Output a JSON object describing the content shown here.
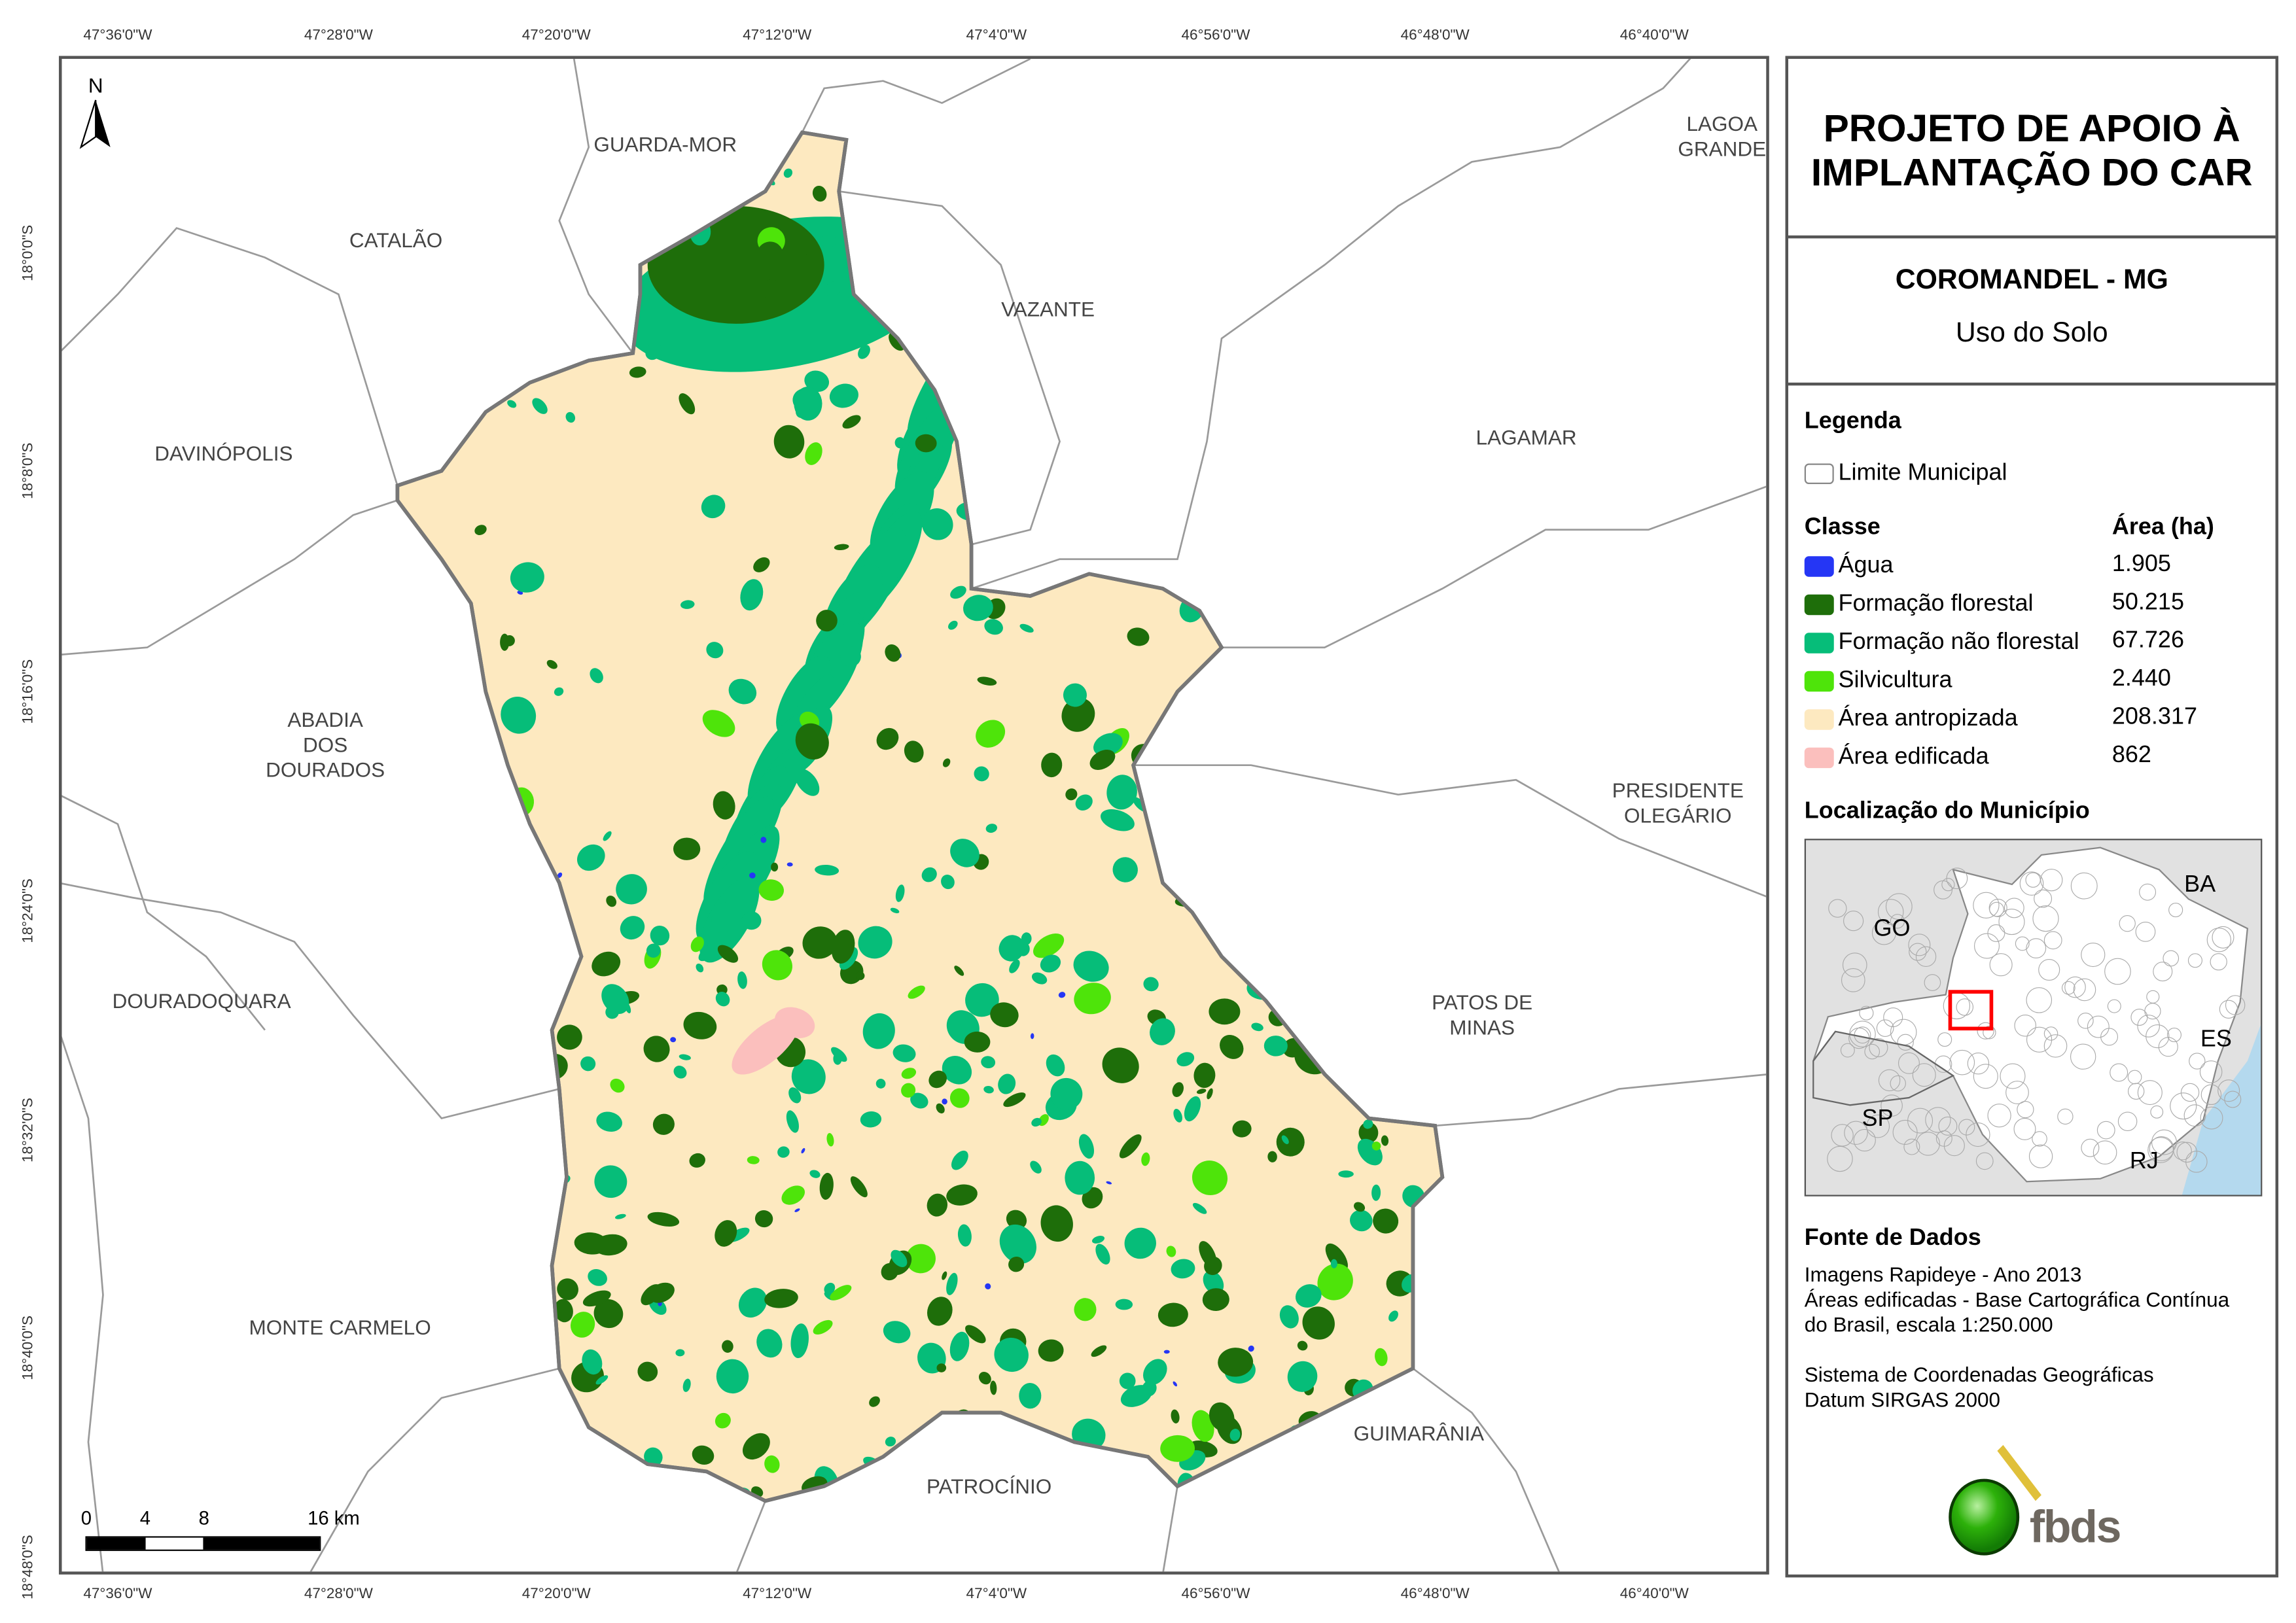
{
  "title": {
    "line1": "PROJETO DE APOIO À",
    "line2": "IMPLANTAÇÃO DO CAR"
  },
  "municipality": "COROMANDEL - MG",
  "subtitle": "Uso do Solo",
  "legend": {
    "heading": "Legenda",
    "boundary_label": "Limite Municipal",
    "class_header": "Classe",
    "area_header": "Área (ha)",
    "classes": [
      {
        "label": "Água",
        "area": "1.905",
        "color": "#2536f5"
      },
      {
        "label": "Formação florestal",
        "area": "50.215",
        "color": "#1e6e0a"
      },
      {
        "label": "Formação não florestal",
        "area": "67.726",
        "color": "#06bd79"
      },
      {
        "label": "Silvicultura",
        "area": "2.440",
        "color": "#4ee40a"
      },
      {
        "label": "Área antropizada",
        "area": "208.317",
        "color": "#fde9c0"
      },
      {
        "label": "Área edificada",
        "area": "862",
        "color": "#fbbfbd"
      }
    ]
  },
  "location": {
    "heading": "Localização do Município",
    "labels": {
      "go": "GO",
      "ba": "BA",
      "es": "ES",
      "sp": "SP",
      "rj": "RJ"
    },
    "highlight_color": "#ff0000"
  },
  "sources": {
    "heading": "Fonte de Dados",
    "line1": "Imagens Rapideye - Ano 2013",
    "line2": "Áreas edificadas - Base Cartográfica Contínua",
    "line3": "do Brasil, escala 1:250.000",
    "line4": "Sistema de Coordenadas Geográficas",
    "line5": "Datum SIRGAS 2000"
  },
  "logo_text": "fbds",
  "north_label": "N",
  "scale": {
    "l0": "0",
    "l1": "4",
    "l2": "8",
    "l3": "16 km"
  },
  "longitudes": [
    "47°36'0\"W",
    "47°28'0\"W",
    "47°20'0\"W",
    "47°12'0\"W",
    "47°4'0\"W",
    "46°56'0\"W",
    "46°48'0\"W",
    "46°40'0\"W"
  ],
  "latitudes": [
    "18°0'0\"S",
    "18°8'0\"S",
    "18°16'0\"S",
    "18°24'0\"S",
    "18°32'0\"S",
    "18°40'0\"S",
    "18°48'0\"S"
  ],
  "places": {
    "guarda_mor": "GUARDA-MOR",
    "lagoa_grande": [
      "LAGOA",
      "GRANDE"
    ],
    "catalao": "CATALÃO",
    "vazante": "VAZANTE",
    "davinopolis": "DAVINÓPOLIS",
    "lagamar": "LAGAMAR",
    "abadia": [
      "ABADIA",
      "DOS",
      "DOURADOS"
    ],
    "presidente": [
      "PRESIDENTE",
      "OLEGÁRIO"
    ],
    "douradoquara": "DOURADOQUARA",
    "patos": [
      "PATOS DE",
      "MINAS"
    ],
    "monte_carmelo": "MONTE CARMELO",
    "guimarania": "GUIMARÂNIA",
    "patrocinio": "PATROCÍNIO"
  }
}
